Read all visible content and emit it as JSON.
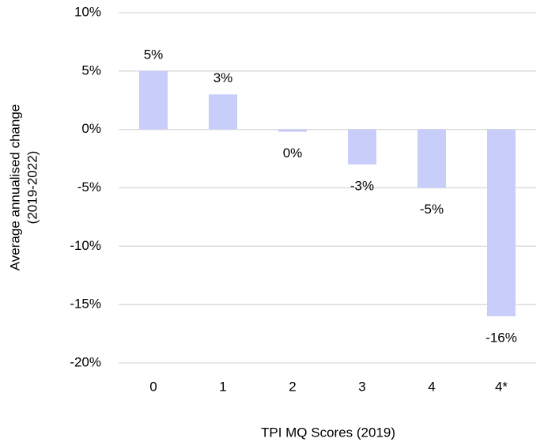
{
  "chart_data": {
    "type": "bar",
    "x_label": "TPI MQ Scores (2019)",
    "y_label": [
      "Average annualised change",
      "(2019-2022)"
    ],
    "categories": [
      "0",
      "1",
      "2",
      "3",
      "4",
      "4*"
    ],
    "values": [
      5,
      3,
      -0.2,
      -3,
      -5,
      -16
    ],
    "value_labels": [
      "5%",
      "3%",
      "0%",
      "-3%",
      "-5%",
      "-16%"
    ],
    "color": "#c9cdfa",
    "ylim": [
      -20,
      10
    ],
    "yticks": [
      {
        "value": -20,
        "label": "-20%"
      },
      {
        "value": -15,
        "label": "-15%"
      },
      {
        "value": -10,
        "label": "-10%"
      },
      {
        "value": -5,
        "label": "-5%"
      },
      {
        "value": 0,
        "label": "0%"
      },
      {
        "value": 5,
        "label": "5%"
      },
      {
        "value": 10,
        "label": "10%"
      }
    ],
    "grid": true
  }
}
